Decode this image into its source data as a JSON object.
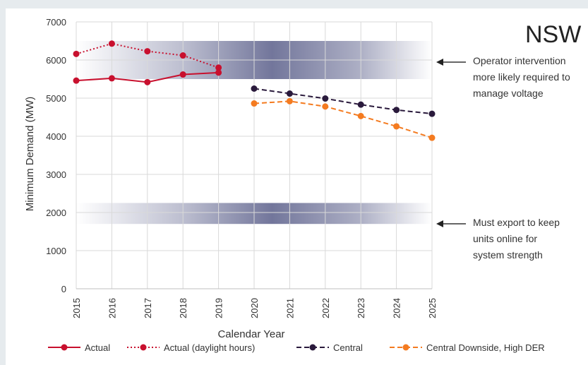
{
  "chart_data": {
    "type": "line",
    "title": "NSW",
    "xlabel": "Calendar Year",
    "ylabel": "Minimum Demand (MW)",
    "ylim": [
      0,
      7000
    ],
    "yticks": [
      0,
      1000,
      2000,
      3000,
      4000,
      5000,
      6000,
      7000
    ],
    "x": [
      2015,
      2016,
      2017,
      2018,
      2019,
      2020,
      2021,
      2022,
      2023,
      2024,
      2025
    ],
    "grid": true,
    "legend_position": "bottom",
    "series": [
      {
        "name": "Actual",
        "color": "#c8102e",
        "style": "solid",
        "x": [
          2015,
          2016,
          2017,
          2018,
          2019
        ],
        "y": [
          5460,
          5520,
          5420,
          5620,
          5670
        ]
      },
      {
        "name": "Actual (daylight hours)",
        "color": "#c8102e",
        "style": "dotted",
        "x": [
          2015,
          2016,
          2017,
          2018,
          2019
        ],
        "y": [
          6160,
          6430,
          6230,
          6120,
          5800
        ]
      },
      {
        "name": "Central",
        "color": "#2a1a3c",
        "style": "dashed",
        "x": [
          2020,
          2021,
          2022,
          2023,
          2024,
          2025
        ],
        "y": [
          5250,
          5120,
          4990,
          4830,
          4690,
          4590
        ]
      },
      {
        "name": "Central Downside, High DER",
        "color": "#f47b20",
        "style": "dashed",
        "x": [
          2020,
          2021,
          2022,
          2023,
          2024,
          2025
        ],
        "y": [
          4860,
          4920,
          4780,
          4530,
          4260,
          3960
        ]
      }
    ],
    "bands": [
      {
        "name": "voltage-band",
        "y_from": 5500,
        "y_to": 6500,
        "color": "#6b6f96"
      },
      {
        "name": "export-band",
        "y_from": 1700,
        "y_to": 2250,
        "color": "#6b6f96"
      }
    ],
    "annotations": [
      {
        "name": "voltage",
        "text_lines": [
          "Operator intervention",
          "more likely required to",
          "manage voltage"
        ]
      },
      {
        "name": "export",
        "text_lines": [
          "Must export to keep",
          "units online for",
          "system strength"
        ]
      }
    ]
  }
}
